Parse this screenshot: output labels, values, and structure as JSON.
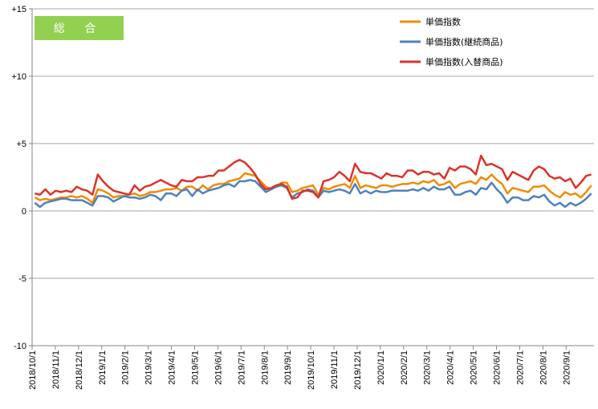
{
  "chart_data": {
    "type": "line",
    "badge": {
      "label": "総 合",
      "color": "#92d050"
    },
    "y_ticks": [
      {
        "value": 15,
        "label": "+15"
      },
      {
        "value": 10,
        "label": "+10"
      },
      {
        "value": 5,
        "label": "+5"
      },
      {
        "value": 0,
        "label": "0"
      },
      {
        "value": -5,
        "label": "-5"
      },
      {
        "value": -10,
        "label": "-10"
      }
    ],
    "ylim": [
      -10,
      15
    ],
    "grid": "horizontal",
    "legend_position": "top-right",
    "x_tick_labels": [
      "2018/10/1",
      "2018/11/1",
      "2018/12/1",
      "2019/1/1",
      "2019/2/1",
      "2019/3/1",
      "2019/4/1",
      "2019/5/1",
      "2019/6/1",
      "2019/7/1",
      "2019/8/1",
      "2019/9/1",
      "2019/10/1",
      "2019/11/1",
      "2019/12/1",
      "2020/1/1",
      "2020/2/1",
      "2020/3/1",
      "2020/4/1",
      "2020/5/1",
      "2020/6/1",
      "2020/7/1",
      "2020/8/1",
      "2020/9/1"
    ],
    "series": [
      {
        "name": "単価指数",
        "color": "#f08c00",
        "values": [
          1.0,
          0.8,
          0.9,
          0.8,
          0.9,
          1.0,
          1.0,
          1.1,
          1.0,
          1.1,
          0.9,
          0.6,
          1.6,
          1.5,
          1.3,
          1.0,
          1.1,
          1.1,
          1.2,
          1.3,
          1.1,
          1.2,
          1.4,
          1.4,
          1.5,
          1.6,
          1.6,
          1.7,
          1.5,
          1.8,
          1.8,
          1.5,
          1.9,
          1.6,
          1.9,
          2.0,
          2.0,
          2.2,
          2.3,
          2.4,
          2.8,
          2.7,
          2.6,
          2.2,
          1.8,
          1.6,
          1.8,
          2.1,
          2.1,
          1.4,
          1.5,
          1.7,
          1.8,
          1.9,
          1.2,
          1.7,
          1.6,
          1.8,
          1.9,
          2.0,
          1.7,
          2.6,
          1.7,
          1.9,
          1.8,
          1.7,
          1.9,
          1.9,
          1.8,
          1.9,
          2.0,
          2.0,
          2.1,
          2.0,
          2.2,
          2.1,
          2.3,
          1.9,
          2.0,
          2.2,
          1.7,
          2.0,
          2.1,
          2.2,
          2.0,
          2.5,
          2.3,
          2.7,
          2.3,
          2.0,
          1.3,
          1.7,
          1.6,
          1.5,
          1.4,
          1.8,
          1.8,
          1.9,
          1.5,
          1.2,
          1.0,
          1.4,
          1.2,
          1.3,
          1.0,
          1.4,
          1.9
        ],
        "show_markers": false
      },
      {
        "name": "単価指数(継続商品)",
        "color": "#4f81bd",
        "values": [
          0.6,
          0.3,
          0.6,
          0.7,
          0.8,
          0.9,
          0.9,
          0.8,
          0.8,
          0.8,
          0.6,
          0.4,
          1.1,
          1.1,
          1.0,
          0.7,
          0.9,
          1.1,
          1.0,
          1.0,
          0.9,
          1.0,
          1.2,
          1.1,
          0.8,
          1.3,
          1.3,
          1.1,
          1.5,
          1.6,
          1.1,
          1.6,
          1.3,
          1.5,
          1.6,
          1.7,
          1.9,
          2.0,
          1.8,
          2.2,
          2.2,
          2.3,
          2.2,
          1.8,
          1.4,
          1.6,
          1.8,
          1.9,
          1.7,
          1.0,
          1.3,
          1.4,
          1.6,
          1.5,
          1.0,
          1.5,
          1.4,
          1.5,
          1.6,
          1.5,
          1.3,
          2.0,
          1.3,
          1.5,
          1.3,
          1.5,
          1.4,
          1.4,
          1.5,
          1.5,
          1.5,
          1.5,
          1.6,
          1.5,
          1.7,
          1.5,
          1.8,
          1.6,
          1.6,
          1.8,
          1.2,
          1.2,
          1.4,
          1.5,
          1.2,
          1.7,
          1.6,
          2.1,
          1.6,
          1.2,
          0.6,
          1.0,
          1.0,
          0.8,
          0.8,
          1.1,
          1.0,
          1.2,
          0.7,
          0.4,
          0.6,
          0.3,
          0.6,
          0.4,
          0.6,
          0.9,
          1.3
        ],
        "show_markers": false
      },
      {
        "name": "単価指数(入替商品)",
        "color": "#d9342b",
        "values": [
          1.3,
          1.2,
          1.6,
          1.2,
          1.5,
          1.4,
          1.5,
          1.4,
          1.8,
          1.6,
          1.5,
          1.2,
          2.7,
          2.2,
          1.8,
          1.5,
          1.4,
          1.3,
          1.2,
          1.9,
          1.5,
          1.8,
          1.9,
          2.1,
          2.3,
          2.1,
          1.9,
          1.8,
          2.3,
          2.2,
          2.2,
          2.5,
          2.5,
          2.6,
          2.6,
          3.0,
          3.0,
          3.3,
          3.6,
          3.8,
          3.6,
          3.2,
          2.7,
          2.0,
          1.6,
          1.7,
          1.9,
          2.0,
          1.8,
          0.9,
          1.0,
          1.5,
          1.5,
          1.4,
          1.0,
          2.2,
          2.3,
          2.5,
          2.9,
          2.6,
          2.2,
          3.5,
          2.9,
          2.8,
          2.8,
          2.6,
          2.4,
          2.8,
          2.6,
          2.6,
          2.5,
          3.0,
          3.0,
          2.7,
          2.9,
          2.9,
          2.7,
          2.8,
          2.4,
          3.2,
          3.0,
          3.3,
          3.3,
          3.1,
          2.7,
          4.1,
          3.4,
          3.5,
          3.3,
          3.1,
          2.3,
          2.9,
          2.7,
          2.5,
          2.3,
          3.0,
          3.3,
          3.1,
          2.6,
          2.4,
          2.5,
          2.2,
          2.4,
          1.7,
          2.1,
          2.6,
          2.7
        ],
        "show_markers": false
      }
    ]
  }
}
